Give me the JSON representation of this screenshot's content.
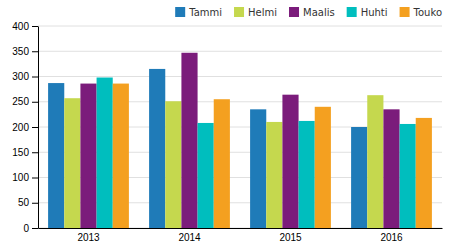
{
  "chart_data": {
    "type": "bar",
    "categories": [
      "2013",
      "2014",
      "2015",
      "2016"
    ],
    "series": [
      {
        "name": "Tammi",
        "color": "#1F7BB8",
        "values": [
          287,
          315,
          235,
          200
        ]
      },
      {
        "name": "Helmi",
        "color": "#C5D84E",
        "values": [
          257,
          251,
          210,
          263
        ]
      },
      {
        "name": "Maalis",
        "color": "#7B1C7B",
        "values": [
          286,
          347,
          264,
          235
        ]
      },
      {
        "name": "Huhti",
        "color": "#00BEBE",
        "values": [
          298,
          208,
          212,
          206
        ]
      },
      {
        "name": "Touko",
        "color": "#F4A020",
        "values": [
          286,
          255,
          240,
          218
        ]
      }
    ],
    "ylim": [
      0,
      400
    ],
    "yticks": [
      0,
      50,
      100,
      150,
      200,
      250,
      300,
      350,
      400
    ],
    "grid": true,
    "legend": "upper right"
  }
}
